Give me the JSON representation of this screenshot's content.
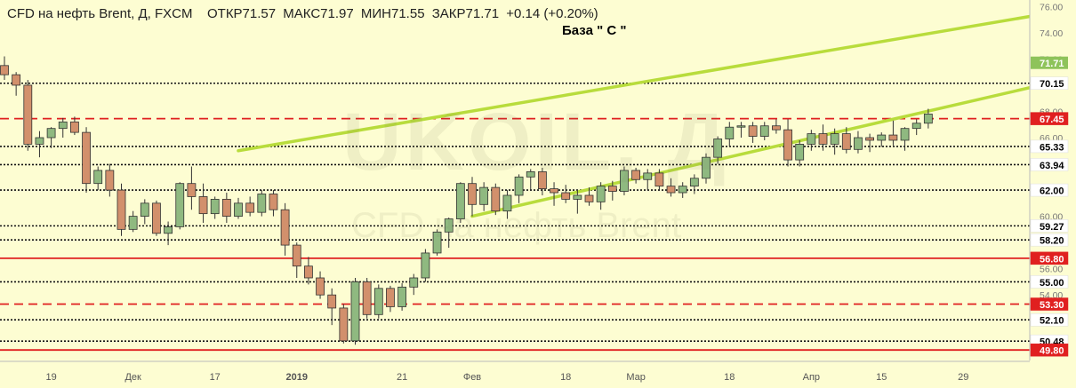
{
  "header": {
    "symbol": "CFD на нефть Brent, Д, FXCM",
    "open": "ОТКР71.57",
    "high": "МАКС71.97",
    "low": "МИН71.55",
    "close": "ЗАКР71.71",
    "change": "+0.14 (+0.20%)"
  },
  "annotation": "База \" С \"",
  "watermark": {
    "ticker": "UKOIL, Д",
    "name": "CFD на нефть Brent"
  },
  "colors": {
    "background": "#fdfdd2",
    "bull_candle": "#8fb980",
    "bear_candle": "#d2906c",
    "channel": "#b8dc3c",
    "red_level": "#e02020",
    "black_level": "#111111",
    "circle": "#f0a0b8",
    "current_price_badge": "#8ec35a"
  },
  "chart_data": {
    "type": "candlestick",
    "ylim": [
      49.0,
      76.5
    ],
    "y_ticks": [
      "76.00",
      "74.00",
      "72.00",
      "70.00",
      "68.00",
      "66.00",
      "64.00",
      "62.00",
      "60.00",
      "58.00",
      "56.00",
      "54.00",
      "52.00",
      "50.00"
    ],
    "x_labels": [
      "19",
      "Дек",
      "17",
      "2019",
      "21",
      "Фев",
      "18",
      "Мар",
      "18",
      "Апр",
      "15",
      "29"
    ],
    "current_price": "71.71",
    "levels": [
      {
        "value": "70.15",
        "color": "black",
        "style": "dotted"
      },
      {
        "value": "67.45",
        "color": "red",
        "style": "dashed"
      },
      {
        "value": "65.33",
        "color": "black",
        "style": "dotted"
      },
      {
        "value": "63.94",
        "color": "black",
        "style": "dotted"
      },
      {
        "value": "62.00",
        "color": "black",
        "style": "dotted"
      },
      {
        "value": "59.27",
        "color": "black",
        "style": "dotted"
      },
      {
        "value": "58.20",
        "color": "black",
        "style": "dotted"
      },
      {
        "value": "56.80",
        "color": "red",
        "style": "solid"
      },
      {
        "value": "55.00",
        "color": "black",
        "style": "dotted"
      },
      {
        "value": "53.30",
        "color": "red",
        "style": "dashed"
      },
      {
        "value": "52.10",
        "color": "black",
        "style": "dotted"
      },
      {
        "value": "50.48",
        "color": "black",
        "style": "dotted"
      },
      {
        "value": "49.80",
        "color": "red",
        "style": "solid"
      }
    ],
    "channel": [
      {
        "from": [
          20,
          65.0
        ],
        "to": [
          92,
          75.9
        ]
      },
      {
        "from": [
          40,
          60.0
        ],
        "to": [
          92,
          70.7
        ]
      }
    ],
    "circle_at": [
      90,
      70.8
    ],
    "candles": [
      [
        71.5,
        72.2,
        70.4,
        70.8
      ],
      [
        70.8,
        71.0,
        69.2,
        70.0
      ],
      [
        70.0,
        70.4,
        65.0,
        65.5
      ],
      [
        65.5,
        66.5,
        64.5,
        66.0
      ],
      [
        66.0,
        66.8,
        65.2,
        66.7
      ],
      [
        66.7,
        67.5,
        66.0,
        67.2
      ],
      [
        67.2,
        67.6,
        66.2,
        66.4
      ],
      [
        66.4,
        66.8,
        61.8,
        62.5
      ],
      [
        62.5,
        63.8,
        62.0,
        63.5
      ],
      [
        63.5,
        64.0,
        61.5,
        62.0
      ],
      [
        62.0,
        62.5,
        58.5,
        59.0
      ],
      [
        59.0,
        60.4,
        58.8,
        60.0
      ],
      [
        60.0,
        61.3,
        59.4,
        61.0
      ],
      [
        61.0,
        61.2,
        58.5,
        58.7
      ],
      [
        58.7,
        59.6,
        57.8,
        59.2
      ],
      [
        59.2,
        62.6,
        59.0,
        62.5
      ],
      [
        62.5,
        63.8,
        60.5,
        61.5
      ],
      [
        61.5,
        62.5,
        59.5,
        60.2
      ],
      [
        60.2,
        61.5,
        59.8,
        61.3
      ],
      [
        61.3,
        61.8,
        59.5,
        60.0
      ],
      [
        60.0,
        61.4,
        59.8,
        61.0
      ],
      [
        61.0,
        61.5,
        60.0,
        60.3
      ],
      [
        60.3,
        62.0,
        60.0,
        61.7
      ],
      [
        61.7,
        62.0,
        60.0,
        60.5
      ],
      [
        60.5,
        61.0,
        57.0,
        57.8
      ],
      [
        57.8,
        58.0,
        55.3,
        56.2
      ],
      [
        56.2,
        56.9,
        54.8,
        55.3
      ],
      [
        55.3,
        55.8,
        53.7,
        54.0
      ],
      [
        54.0,
        54.5,
        51.7,
        53.0
      ],
      [
        53.0,
        53.3,
        50.3,
        50.5
      ],
      [
        50.5,
        55.3,
        50.2,
        55.0
      ],
      [
        55.0,
        55.3,
        52.2,
        52.5
      ],
      [
        52.5,
        54.8,
        52.2,
        54.5
      ],
      [
        54.5,
        54.7,
        52.7,
        53.1
      ],
      [
        53.1,
        54.9,
        52.8,
        54.6
      ],
      [
        54.6,
        55.6,
        54.0,
        55.3
      ],
      [
        55.3,
        57.5,
        55.0,
        57.2
      ],
      [
        57.2,
        59.0,
        57.0,
        58.8
      ],
      [
        58.8,
        59.9,
        57.6,
        59.8
      ],
      [
        59.8,
        62.6,
        59.5,
        62.5
      ],
      [
        62.5,
        63.0,
        60.0,
        60.9
      ],
      [
        60.9,
        62.6,
        60.4,
        62.2
      ],
      [
        62.2,
        62.5,
        60.1,
        60.4
      ],
      [
        60.4,
        62.0,
        59.8,
        61.6
      ],
      [
        61.6,
        63.2,
        61.0,
        63.0
      ],
      [
        63.0,
        63.6,
        62.0,
        63.4
      ],
      [
        63.4,
        63.7,
        61.6,
        62.1
      ],
      [
        62.1,
        62.6,
        60.8,
        61.8
      ],
      [
        61.8,
        62.4,
        61.0,
        61.3
      ],
      [
        61.3,
        62.0,
        60.2,
        61.6
      ],
      [
        61.6,
        62.2,
        60.8,
        61.1
      ],
      [
        61.1,
        62.6,
        60.5,
        62.3
      ],
      [
        62.3,
        62.7,
        61.2,
        61.9
      ],
      [
        61.9,
        63.8,
        61.6,
        63.5
      ],
      [
        63.5,
        63.7,
        62.5,
        62.8
      ],
      [
        62.8,
        63.6,
        62.0,
        63.3
      ],
      [
        63.3,
        63.6,
        62.0,
        62.3
      ],
      [
        62.3,
        62.9,
        61.5,
        61.8
      ],
      [
        61.8,
        62.6,
        61.4,
        62.3
      ],
      [
        62.3,
        63.2,
        61.7,
        62.9
      ],
      [
        62.9,
        64.8,
        62.5,
        64.5
      ],
      [
        64.5,
        66.1,
        64.0,
        65.9
      ],
      [
        65.9,
        67.2,
        65.3,
        66.8
      ],
      [
        66.8,
        67.2,
        66.0,
        66.9
      ],
      [
        66.9,
        67.2,
        65.6,
        66.1
      ],
      [
        66.1,
        67.2,
        65.8,
        66.9
      ],
      [
        66.9,
        67.4,
        66.3,
        66.6
      ],
      [
        66.6,
        67.4,
        63.8,
        64.3
      ],
      [
        64.3,
        65.8,
        63.8,
        65.5
      ],
      [
        65.5,
        66.6,
        65.0,
        66.3
      ],
      [
        66.3,
        67.0,
        65.0,
        65.5
      ],
      [
        65.5,
        66.7,
        64.7,
        66.3
      ],
      [
        66.3,
        66.8,
        64.8,
        65.1
      ],
      [
        65.1,
        66.5,
        64.8,
        66.0
      ],
      [
        66.0,
        66.3,
        64.9,
        65.8
      ],
      [
        65.8,
        66.4,
        65.3,
        66.2
      ],
      [
        66.2,
        67.3,
        65.4,
        65.8
      ],
      [
        65.8,
        66.8,
        65.0,
        66.7
      ],
      [
        66.7,
        67.4,
        66.2,
        67.1
      ],
      [
        67.1,
        68.2,
        66.7,
        67.8
      ]
    ]
  }
}
